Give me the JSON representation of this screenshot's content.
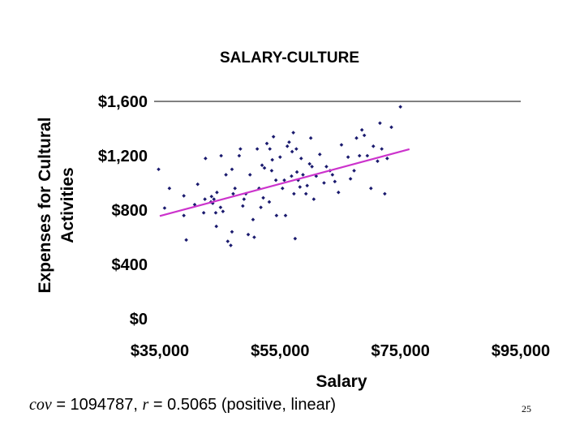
{
  "caption": {
    "cov_symbol": "cov",
    "cov_text": " = 1094787, ",
    "r_symbol": "r",
    "r_text": " = 0.5065 (positive, linear)"
  },
  "page_number": "25",
  "chart_data": {
    "type": "scatter",
    "title": "SALARY-CULTURE",
    "xlabel": "Salary",
    "ylabel_lines": [
      "Expenses for Cultural",
      "Activities"
    ],
    "xlim": [
      35000,
      95000
    ],
    "ylim": [
      0,
      1600
    ],
    "x_ticks": [
      35000,
      55000,
      75000,
      95000
    ],
    "x_tick_labels": [
      "$35,000",
      "$55,000",
      "$75,000",
      "$95,000"
    ],
    "y_ticks": [
      0,
      400,
      800,
      1200,
      1600
    ],
    "y_tick_labels": [
      "$0",
      "$400",
      "$800",
      "$1,600"
    ],
    "y_tick_labels_full": [
      "$0",
      "$400",
      "$800",
      "$1,200",
      "$1,600"
    ],
    "gridline_at": 1600,
    "grid": false,
    "point_color": "#1a1a6e",
    "trend_color": "#cc33cc",
    "trendline": {
      "x": [
        35000,
        76500
      ],
      "y": [
        756,
        1248
      ]
    },
    "points": [
      [
        34800,
        1100
      ],
      [
        35800,
        815
      ],
      [
        36600,
        960
      ],
      [
        39000,
        905
      ],
      [
        39000,
        760
      ],
      [
        39400,
        580
      ],
      [
        40800,
        840
      ],
      [
        41300,
        990
      ],
      [
        42500,
        880
      ],
      [
        42600,
        1180
      ],
      [
        42300,
        780
      ],
      [
        43500,
        860
      ],
      [
        43600,
        900
      ],
      [
        43800,
        850
      ],
      [
        44000,
        880
      ],
      [
        44300,
        780
      ],
      [
        44400,
        680
      ],
      [
        44500,
        930
      ],
      [
        45200,
        1200
      ],
      [
        45500,
        790
      ],
      [
        45100,
        820
      ],
      [
        46000,
        1060
      ],
      [
        46300,
        570
      ],
      [
        46800,
        540
      ],
      [
        47000,
        1100
      ],
      [
        47200,
        920
      ],
      [
        47000,
        640
      ],
      [
        47500,
        960
      ],
      [
        48200,
        1200
      ],
      [
        48400,
        1250
      ],
      [
        48800,
        830
      ],
      [
        49000,
        880
      ],
      [
        49300,
        920
      ],
      [
        49700,
        620
      ],
      [
        50000,
        1060
      ],
      [
        50500,
        730
      ],
      [
        50700,
        600
      ],
      [
        51200,
        1250
      ],
      [
        51500,
        960
      ],
      [
        51800,
        820
      ],
      [
        52000,
        1130
      ],
      [
        52200,
        890
      ],
      [
        52400,
        1110
      ],
      [
        52800,
        1290
      ],
      [
        53200,
        860
      ],
      [
        53300,
        1250
      ],
      [
        53600,
        1090
      ],
      [
        53700,
        1170
      ],
      [
        53900,
        1340
      ],
      [
        54300,
        1020
      ],
      [
        54400,
        760
      ],
      [
        55000,
        1190
      ],
      [
        55400,
        960
      ],
      [
        55700,
        1020
      ],
      [
        55900,
        760
      ],
      [
        56200,
        1270
      ],
      [
        56500,
        1300
      ],
      [
        56900,
        1050
      ],
      [
        57000,
        1230
      ],
      [
        57200,
        1370
      ],
      [
        57300,
        920
      ],
      [
        57500,
        590
      ],
      [
        57700,
        1250
      ],
      [
        57800,
        1080
      ],
      [
        58000,
        1020
      ],
      [
        58300,
        970
      ],
      [
        58500,
        1180
      ],
      [
        58800,
        1060
      ],
      [
        59300,
        920
      ],
      [
        59500,
        980
      ],
      [
        59900,
        1140
      ],
      [
        60100,
        1330
      ],
      [
        60300,
        1120
      ],
      [
        60600,
        880
      ],
      [
        61000,
        1050
      ],
      [
        61600,
        1210
      ],
      [
        62300,
        1000
      ],
      [
        62700,
        1120
      ],
      [
        63300,
        1090
      ],
      [
        63700,
        1060
      ],
      [
        64100,
        1010
      ],
      [
        64700,
        930
      ],
      [
        65200,
        1280
      ],
      [
        66300,
        1190
      ],
      [
        66700,
        1030
      ],
      [
        67300,
        1090
      ],
      [
        67700,
        1330
      ],
      [
        68200,
        1200
      ],
      [
        68600,
        1390
      ],
      [
        69000,
        1350
      ],
      [
        69500,
        1200
      ],
      [
        70100,
        960
      ],
      [
        70500,
        1270
      ],
      [
        71200,
        1160
      ],
      [
        71600,
        1440
      ],
      [
        71900,
        1250
      ],
      [
        72400,
        920
      ],
      [
        72800,
        1180
      ],
      [
        73500,
        1410
      ],
      [
        75000,
        1560
      ]
    ]
  }
}
